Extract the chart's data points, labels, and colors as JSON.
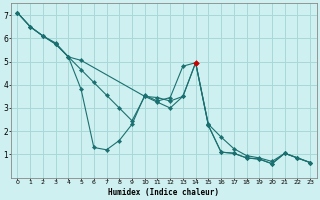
{
  "xlabel": "Humidex (Indice chaleur)",
  "bg_color": "#cff0f0",
  "grid_color": "#a8d8d8",
  "line_color": "#1a7070",
  "special_marker_color": "#cc0000",
  "xlim": [
    -0.5,
    23.5
  ],
  "ylim": [
    0,
    7.5
  ],
  "xticks": [
    0,
    1,
    2,
    3,
    4,
    5,
    6,
    7,
    8,
    9,
    10,
    11,
    12,
    13,
    14,
    15,
    16,
    17,
    18,
    19,
    20,
    21,
    22,
    23
  ],
  "yticks": [
    1,
    2,
    3,
    4,
    5,
    6,
    7
  ],
  "line1_x": [
    0,
    1,
    2,
    3,
    4,
    5,
    6,
    7,
    8,
    9,
    10,
    11,
    12,
    13,
    14,
    15,
    16,
    17,
    18,
    19,
    20,
    21,
    22,
    23
  ],
  "line1_y": [
    7.1,
    6.5,
    6.1,
    5.8,
    5.2,
    3.8,
    1.3,
    1.2,
    1.6,
    2.3,
    3.55,
    3.3,
    3.45,
    4.8,
    4.95,
    2.25,
    1.1,
    1.05,
    0.85,
    0.8,
    0.6,
    1.05,
    0.85,
    0.65
  ],
  "line2_x": [
    0,
    1,
    2,
    3,
    4,
    5,
    6,
    7,
    8,
    9,
    10,
    11,
    12,
    13,
    14,
    15,
    16,
    17,
    18,
    19,
    20,
    21,
    22,
    23
  ],
  "line2_y": [
    7.1,
    6.5,
    6.1,
    5.75,
    5.2,
    4.65,
    4.1,
    3.55,
    3.0,
    2.45,
    3.5,
    3.25,
    3.0,
    3.5,
    4.95,
    2.3,
    1.75,
    1.25,
    0.95,
    0.85,
    0.7,
    1.05,
    0.85,
    0.65
  ],
  "line3_x": [
    0,
    1,
    2,
    3,
    4,
    5,
    10,
    11,
    12,
    13,
    14,
    15,
    16,
    17,
    18,
    19,
    20,
    21,
    22,
    23
  ],
  "line3_y": [
    7.1,
    6.5,
    6.1,
    5.75,
    5.2,
    5.05,
    3.5,
    3.45,
    3.3,
    3.5,
    4.95,
    2.25,
    1.1,
    1.05,
    0.85,
    0.8,
    0.6,
    1.05,
    0.85,
    0.65
  ],
  "special_x": 14,
  "special_y": 4.95
}
